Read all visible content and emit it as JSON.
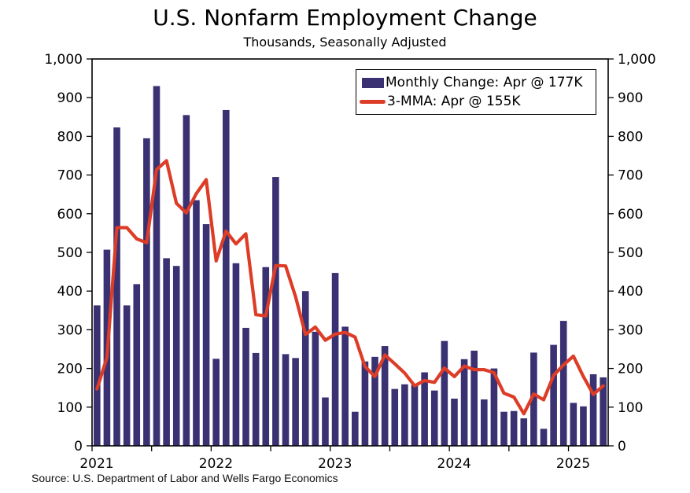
{
  "chart": {
    "title": "U.S. Nonfarm Employment Change",
    "subtitle": "Thousands, Seasonally Adjusted",
    "legend_monthly": "Monthly Change: Apr @ 177K",
    "legend_mma": "3-MMA: Apr @ 155K",
    "source": "Source: U.S. Department of Labor and Wells Fargo Economics"
  },
  "chart_data": {
    "type": "bar",
    "overlay": "line",
    "title": "U.S. Nonfarm Employment Change",
    "subtitle": "Thousands, Seasonally Adjusted",
    "unit": "thousands of jobs, seasonally adjusted",
    "ylim": [
      0,
      1000
    ],
    "y_ticks": [
      0,
      100,
      200,
      300,
      400,
      500,
      600,
      700,
      800,
      900,
      1000
    ],
    "y_tick_labels": [
      "0",
      "100",
      "200",
      "300",
      "400",
      "500",
      "600",
      "700",
      "800",
      "900",
      "1,000"
    ],
    "x_tick_years": [
      "2021",
      "2022",
      "2023",
      "2024",
      "2025"
    ],
    "grid": false,
    "legend_position": "top-right",
    "categories": [
      "Jan 2021",
      "Feb 2021",
      "Mar 2021",
      "Apr 2021",
      "May 2021",
      "Jun 2021",
      "Jul 2021",
      "Aug 2021",
      "Sep 2021",
      "Oct 2021",
      "Nov 2021",
      "Dec 2021",
      "Jan 2022",
      "Feb 2022",
      "Mar 2022",
      "Apr 2022",
      "May 2022",
      "Jun 2022",
      "Jul 2022",
      "Aug 2022",
      "Sep 2022",
      "Oct 2022",
      "Nov 2022",
      "Dec 2022",
      "Jan 2023",
      "Feb 2023",
      "Mar 2023",
      "Apr 2023",
      "May 2023",
      "Jun 2023",
      "Jul 2023",
      "Aug 2023",
      "Sep 2023",
      "Oct 2023",
      "Nov 2023",
      "Dec 2023",
      "Jan 2024",
      "Feb 2024",
      "Mar 2024",
      "Apr 2024",
      "May 2024",
      "Jun 2024",
      "Jul 2024",
      "Aug 2024",
      "Sep 2024",
      "Oct 2024",
      "Nov 2024",
      "Dec 2024",
      "Jan 2025",
      "Feb 2025",
      "Mar 2025",
      "Apr 2025"
    ],
    "series": [
      {
        "name": "Monthly Change: Apr @ 177K",
        "type": "bar",
        "color": "#3A3173",
        "values": [
          363,
          507,
          823,
          363,
          418,
          795,
          930,
          485,
          465,
          855,
          635,
          573,
          225,
          868,
          472,
          305,
          240,
          462,
          695,
          237,
          227,
          400,
          295,
          125,
          447,
          308,
          88,
          218,
          230,
          258,
          147,
          159,
          158,
          190,
          143,
          271,
          122,
          224,
          246,
          120,
          200,
          88,
          90,
          71,
          241,
          44,
          261,
          323,
          111,
          102,
          185,
          177
        ]
      },
      {
        "name": "3-MMA: Apr @ 155K",
        "type": "line",
        "color": "#DD3C26",
        "values": [
          147,
          228,
          564,
          564,
          535,
          525,
          714,
          737,
          627,
          602,
          652,
          688,
          478,
          555,
          522,
          548,
          339,
          336,
          466,
          465,
          386,
          288,
          307,
          273,
          289,
          293,
          281,
          205,
          179,
          235,
          212,
          188,
          155,
          169,
          164,
          201,
          179,
          206,
          197,
          197,
          189,
          136,
          126,
          83,
          134,
          119,
          182,
          209,
          232,
          179,
          133,
          155
        ]
      }
    ]
  }
}
